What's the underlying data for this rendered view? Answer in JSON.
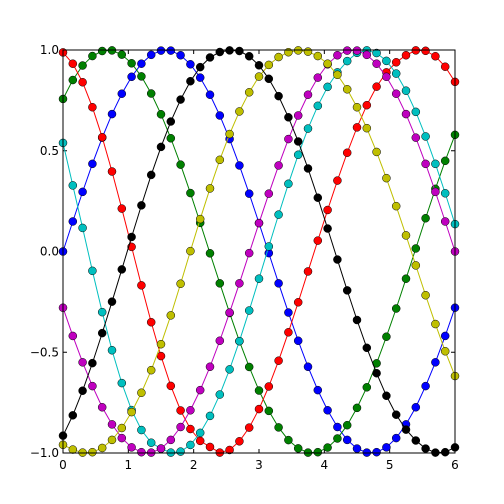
{
  "chart_data": {
    "type": "line",
    "title": "",
    "xlabel": "",
    "ylabel": "",
    "xlim": [
      0,
      6
    ],
    "ylim": [
      -1.0,
      1.0
    ],
    "grid": false,
    "legend": "none",
    "x_ticks": [
      0,
      1,
      2,
      3,
      4,
      5,
      6
    ],
    "x_tick_labels": [
      "0",
      "1",
      "2",
      "3",
      "4",
      "5",
      "6"
    ],
    "y_ticks": [
      -1.0,
      -0.5,
      0.0,
      0.5,
      1.0
    ],
    "y_tick_labels": [
      "−1.0",
      "−0.5",
      "0.0",
      "0.5",
      "1.0"
    ],
    "series": [
      {
        "color": "#0000ff",
        "x": [
          0,
          0.15,
          0.3,
          0.45,
          0.6,
          0.75,
          0.9,
          1.05,
          1.2,
          1.35,
          1.5,
          1.65,
          1.8,
          1.95,
          2.1,
          2.25,
          2.4,
          2.55,
          2.7,
          2.85,
          3,
          3.15,
          3.3,
          3.45,
          3.6,
          3.75,
          3.9,
          4.05,
          4.2,
          4.35,
          4.5,
          4.65,
          4.8,
          4.95,
          5.1,
          5.25,
          5.4,
          5.55,
          5.7,
          5.85,
          6
        ],
        "y": [
          0,
          0.149,
          0.296,
          0.435,
          0.565,
          0.682,
          0.783,
          0.867,
          0.932,
          0.976,
          0.997,
          0.997,
          0.974,
          0.929,
          0.863,
          0.778,
          0.675,
          0.558,
          0.427,
          0.287,
          0.141,
          -0.008,
          -0.158,
          -0.303,
          -0.443,
          -0.572,
          -0.688,
          -0.788,
          -0.871,
          -0.935,
          -0.978,
          -0.998,
          -0.996,
          -0.972,
          -0.926,
          -0.858,
          -0.773,
          -0.668,
          -0.55,
          -0.419,
          -0.279
        ]
      },
      {
        "color": "#008000",
        "x": [
          0,
          0.15,
          0.3,
          0.45,
          0.6,
          0.75,
          0.9,
          1.05,
          1.2,
          1.35,
          1.5,
          1.65,
          1.8,
          1.95,
          2.1,
          2.25,
          2.4,
          2.55,
          2.7,
          2.85,
          3,
          3.15,
          3.3,
          3.45,
          3.6,
          3.75,
          3.9,
          4.05,
          4.2,
          4.35,
          4.5,
          4.65,
          4.8,
          4.95,
          5.1,
          5.25,
          5.4,
          5.55,
          5.7,
          5.85,
          6
        ],
        "y": [
          0.757,
          0.851,
          0.923,
          0.97,
          0.995,
          0.998,
          0.977,
          0.934,
          0.869,
          0.784,
          0.681,
          0.562,
          0.431,
          0.29,
          0.142,
          -0.009,
          -0.158,
          -0.305,
          -0.445,
          -0.573,
          -0.69,
          -0.791,
          -0.873,
          -0.936,
          -0.977,
          -0.998,
          -0.996,
          -0.973,
          -0.928,
          -0.862,
          -0.776,
          -0.674,
          -0.555,
          -0.423,
          -0.283,
          -0.135,
          0.015,
          0.165,
          0.311,
          0.45,
          0.579
        ]
      },
      {
        "color": "#ff0000",
        "x": [
          0,
          0.15,
          0.3,
          0.45,
          0.6,
          0.75,
          0.9,
          1.05,
          1.2,
          1.35,
          1.5,
          1.65,
          1.8,
          1.95,
          2.1,
          2.25,
          2.4,
          2.55,
          2.7,
          2.85,
          3,
          3.15,
          3.3,
          3.45,
          3.6,
          3.75,
          3.9,
          4.05,
          4.2,
          4.35,
          4.5,
          4.65,
          4.8,
          4.95,
          5.1,
          5.25,
          5.4,
          5.55,
          5.7,
          5.85,
          6
        ],
        "y": [
          0.988,
          0.932,
          0.84,
          0.716,
          0.567,
          0.397,
          0.213,
          0.023,
          -0.168,
          -0.351,
          -0.519,
          -0.667,
          -0.789,
          -0.881,
          -0.94,
          -0.97,
          -0.998,
          -0.985,
          -0.942,
          -0.874,
          -0.782,
          -0.67,
          -0.542,
          -0.401,
          -0.252,
          -0.099,
          0.054,
          0.206,
          0.352,
          0.49,
          0.616,
          0.726,
          0.818,
          0.889,
          0.939,
          0.974,
          0.998,
          0.996,
          0.969,
          0.917,
          0.842
        ]
      },
      {
        "color": "#00bfbf",
        "x": [
          0,
          0.15,
          0.3,
          0.45,
          0.6,
          0.75,
          0.9,
          1.05,
          1.2,
          1.35,
          1.5,
          1.65,
          1.8,
          1.95,
          2.1,
          2.25,
          2.4,
          2.55,
          2.7,
          2.85,
          3,
          3.15,
          3.3,
          3.45,
          3.6,
          3.75,
          3.9,
          4.05,
          4.2,
          4.35,
          4.5,
          4.65,
          4.8,
          4.95,
          5.1,
          5.25,
          5.4,
          5.55,
          5.7,
          5.85,
          6
        ],
        "y": [
          0.539,
          0.328,
          0.117,
          -0.096,
          -0.301,
          -0.49,
          -0.653,
          -0.787,
          -0.886,
          -0.949,
          -0.978,
          -0.998,
          -0.993,
          -0.96,
          -0.9,
          -0.816,
          -0.71,
          -0.585,
          -0.445,
          -0.293,
          -0.135,
          0.025,
          0.183,
          0.336,
          0.48,
          0.61,
          0.723,
          0.817,
          0.889,
          0.945,
          0.986,
          0.998,
          0.985,
          0.946,
          0.883,
          0.798,
          0.693,
          0.571,
          0.435,
          0.289,
          0.136
        ]
      },
      {
        "color": "#bf00bf",
        "x": [
          0,
          0.15,
          0.3,
          0.45,
          0.6,
          0.75,
          0.9,
          1.05,
          1.2,
          1.35,
          1.5,
          1.65,
          1.8,
          1.95,
          2.1,
          2.25,
          2.4,
          2.55,
          2.7,
          2.85,
          3,
          3.15,
          3.3,
          3.45,
          3.6,
          3.75,
          3.9,
          4.05,
          4.2,
          4.35,
          4.5,
          4.65,
          4.8,
          4.95,
          5.1,
          5.25,
          5.4,
          5.55,
          5.7,
          5.85,
          6
        ],
        "y": [
          -0.279,
          -0.419,
          -0.55,
          -0.668,
          -0.773,
          -0.858,
          -0.926,
          -0.972,
          -0.996,
          -0.998,
          -0.978,
          -0.935,
          -0.871,
          -0.788,
          -0.688,
          -0.572,
          -0.443,
          -0.303,
          -0.158,
          -0.008,
          0.141,
          0.287,
          0.427,
          0.558,
          0.675,
          0.778,
          0.863,
          0.929,
          0.974,
          0.997,
          0.997,
          0.976,
          0.932,
          0.867,
          0.783,
          0.682,
          0.565,
          0.435,
          0.296,
          0.149,
          0
        ]
      },
      {
        "color": "#bfbf00",
        "x": [
          0,
          0.15,
          0.3,
          0.45,
          0.6,
          0.75,
          0.9,
          1.05,
          1.2,
          1.35,
          1.5,
          1.65,
          1.8,
          1.95,
          2.1,
          2.25,
          2.4,
          2.55,
          2.7,
          2.85,
          3,
          3.15,
          3.3,
          3.45,
          3.6,
          3.75,
          3.9,
          4.05,
          4.2,
          4.35,
          4.5,
          4.65,
          4.8,
          4.95,
          5.1,
          5.25,
          5.4,
          5.55,
          5.7,
          5.85,
          6
        ],
        "y": [
          -0.959,
          -0.983,
          -0.998,
          -0.996,
          -0.975,
          -0.935,
          -0.876,
          -0.797,
          -0.701,
          -0.589,
          -0.46,
          -0.317,
          -0.16,
          0.002,
          0.161,
          0.313,
          0.455,
          0.583,
          0.695,
          0.79,
          0.868,
          0.926,
          0.965,
          0.989,
          0.998,
          0.992,
          0.97,
          0.932,
          0.877,
          0.805,
          0.716,
          0.612,
          0.494,
          0.364,
          0.225,
          0.08,
          -0.069,
          -0.217,
          -0.36,
          -0.495,
          -0.618
        ]
      },
      {
        "color": "#000000",
        "x": [
          0,
          0.15,
          0.3,
          0.45,
          0.6,
          0.75,
          0.9,
          1.05,
          1.2,
          1.35,
          1.5,
          1.65,
          1.8,
          1.95,
          2.1,
          2.25,
          2.4,
          2.55,
          2.7,
          2.85,
          3,
          3.15,
          3.3,
          3.45,
          3.6,
          3.75,
          3.9,
          4.05,
          4.2,
          4.35,
          4.5,
          4.65,
          4.8,
          4.95,
          5.1,
          5.25,
          5.4,
          5.55,
          5.7,
          5.85,
          6
        ],
        "y": [
          -0.914,
          -0.813,
          -0.691,
          -0.554,
          -0.405,
          -0.249,
          -0.089,
          0.072,
          0.229,
          0.38,
          0.519,
          0.645,
          0.754,
          0.845,
          0.915,
          0.963,
          0.99,
          0.998,
          0.995,
          0.969,
          0.924,
          0.857,
          0.771,
          0.666,
          0.546,
          0.412,
          0.267,
          0.114,
          -0.04,
          -0.193,
          -0.34,
          -0.478,
          -0.604,
          -0.716,
          -0.81,
          -0.884,
          -0.938,
          -0.978,
          -0.998,
          -0.996,
          -0.972
        ]
      }
    ]
  }
}
